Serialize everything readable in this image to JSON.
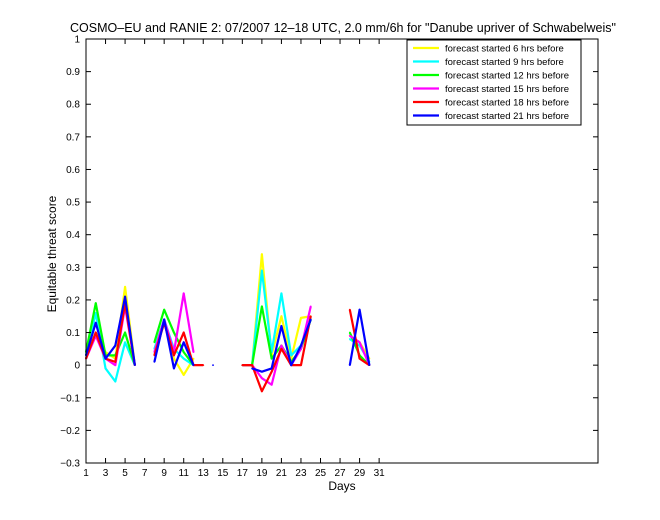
{
  "chart_data": {
    "type": "line",
    "title": "COSMO–EU and RANIE 2: 07/2007 12–18 UTC, 2.0 mm/6h for \"Danube upriver of Schwabelweis\"",
    "xlabel": "Days",
    "ylabel": "Equitable threat score",
    "xlim": [
      1,
      53.4
    ],
    "ylim": [
      -0.3,
      1
    ],
    "xticks": [
      1,
      3,
      5,
      7,
      9,
      11,
      13,
      15,
      17,
      19,
      21,
      23,
      25,
      27,
      29,
      31
    ],
    "yticks": [
      -0.3,
      -0.2,
      -0.1,
      0,
      0.1,
      0.2,
      0.3,
      0.4,
      0.5,
      0.6,
      0.7,
      0.8,
      0.9,
      1
    ],
    "ytick_labels": [
      "−0.3",
      "−0.2",
      "−0.1",
      "0",
      "0.1",
      "0.2",
      "0.3",
      "0.4",
      "0.5",
      "0.6",
      "0.7",
      "0.8",
      "0.9",
      "1"
    ],
    "legend_position": "top-right",
    "grid": false,
    "x": [
      1,
      2,
      3,
      4,
      5,
      6,
      7,
      8,
      9,
      10,
      11,
      12,
      13,
      14,
      15,
      16,
      17,
      18,
      19,
      20,
      21,
      22,
      23,
      24,
      25,
      26,
      27,
      28,
      29,
      30
    ],
    "series": [
      {
        "name": "forecast started 6 hrs before",
        "color": "#ffff00",
        "values": [
          0.02,
          0.1,
          0.04,
          0.02,
          0.24,
          0.0,
          null,
          0.03,
          0.13,
          0.02,
          -0.03,
          0.02,
          null,
          null,
          null,
          null,
          0.0,
          0.0,
          0.34,
          0.03,
          0.15,
          0.02,
          0.145,
          0.15,
          null,
          null,
          null,
          0.09,
          0.07,
          0.02
        ]
      },
      {
        "name": "forecast started 9 hrs before",
        "color": "#00ffff",
        "values": [
          0.03,
          0.16,
          -0.01,
          -0.05,
          0.07,
          0.0,
          null,
          0.05,
          0.14,
          0.05,
          0.02,
          0.0,
          null,
          null,
          null,
          null,
          0.0,
          0.0,
          0.29,
          0.04,
          0.22,
          0.03,
          0.06,
          0.14,
          null,
          null,
          null,
          0.08,
          0.06,
          0.01
        ]
      },
      {
        "name": "forecast started 12 hrs before",
        "color": "#00ff00",
        "values": [
          0.04,
          0.19,
          0.03,
          0.03,
          0.1,
          0.0,
          null,
          0.07,
          0.17,
          0.1,
          0.04,
          0.0,
          null,
          null,
          null,
          null,
          0.0,
          0.0,
          0.18,
          0.02,
          0.06,
          0.01,
          0.05,
          0.14,
          null,
          null,
          null,
          0.1,
          0.03,
          0.0
        ]
      },
      {
        "name": "forecast started 15 hrs before",
        "color": "#ff00ff",
        "values": [
          0.02,
          0.09,
          0.02,
          0.0,
          0.18,
          0.0,
          null,
          0.04,
          0.14,
          0.04,
          0.22,
          0.04,
          null,
          null,
          null,
          null,
          0.0,
          0.0,
          -0.04,
          -0.06,
          0.06,
          0.0,
          0.05,
          0.18,
          null,
          null,
          null,
          0.09,
          0.07,
          0.0
        ]
      },
      {
        "name": "forecast started 18 hrs before",
        "color": "#ff0000",
        "values": [
          0.02,
          0.1,
          0.02,
          0.01,
          0.19,
          0.0,
          null,
          0.03,
          0.13,
          0.03,
          0.1,
          0.0,
          0.0,
          null,
          null,
          null,
          0.0,
          0.0,
          -0.08,
          -0.02,
          0.05,
          0.0,
          0.0,
          0.15,
          null,
          null,
          null,
          0.17,
          0.02,
          0.0
        ]
      },
      {
        "name": "forecast started 21 hrs before",
        "color": "#0000ff",
        "values": [
          0.03,
          0.13,
          0.02,
          0.06,
          0.21,
          0.0,
          null,
          0.01,
          0.14,
          -0.01,
          0.07,
          0.0,
          null,
          0.0,
          null,
          null,
          null,
          -0.01,
          -0.02,
          -0.01,
          0.12,
          0.0,
          0.06,
          0.14,
          null,
          null,
          null,
          0.0,
          0.17,
          0.0
        ]
      }
    ]
  }
}
